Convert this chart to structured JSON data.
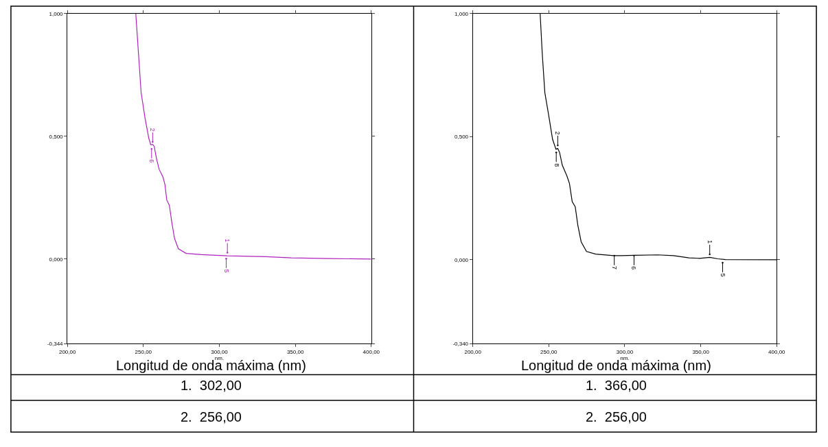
{
  "chart_data": [
    {
      "type": "line",
      "xlabel": "nm.",
      "xlim": [
        200,
        400
      ],
      "ylim": [
        -0.344,
        1.0
      ],
      "xticks": [
        {
          "value": 200,
          "label": "200,00"
        },
        {
          "value": 250,
          "label": "250,00"
        },
        {
          "value": 300,
          "label": "300,00"
        },
        {
          "value": 350,
          "label": "350,00"
        },
        {
          "value": 400,
          "label": "400,00"
        }
      ],
      "yticks": [
        {
          "value": -0.344,
          "label": "-0,344"
        },
        {
          "value": 0,
          "label": "0,000"
        },
        {
          "value": 0.5,
          "label": "0,500"
        },
        {
          "value": 1.0,
          "label": "1,000"
        }
      ],
      "series": [
        {
          "color": "#b020c0",
          "x": [
            245.0,
            246.8,
            248.5,
            251.1,
            253.6,
            254.9,
            256.1,
            257.1,
            258.7,
            260.4,
            262.9,
            264.2,
            265.4,
            267.1,
            268.8,
            270.5,
            273.0,
            278.1,
            288.3,
            305.2,
            330.5,
            347.4,
            372.8,
            400.0
          ],
          "values": [
            1.0,
            0.835,
            0.679,
            0.574,
            0.491,
            0.465,
            0.467,
            0.459,
            0.407,
            0.365,
            0.334,
            0.303,
            0.24,
            0.219,
            0.146,
            0.084,
            0.042,
            0.023,
            0.018,
            0.013,
            0.01,
            0.005,
            0.002,
            0.0
          ]
        }
      ],
      "annotations": [
        {
          "text": "1",
          "x": 305.3,
          "y": 0.026
        },
        {
          "text": "5",
          "x": 304.5,
          "y": 0.002
        },
        {
          "text": "2",
          "x": 256.1,
          "y": 0.477
        },
        {
          "text": "6",
          "x": 255.4,
          "y": 0.449
        },
        "Longitud de onda máxima (nm)",
        "1.  302,00",
        "2.  256,00"
      ]
    },
    {
      "type": "line",
      "xlabel": "nm.",
      "xlim": [
        200,
        400
      ],
      "ylim": [
        -0.34,
        1.0
      ],
      "xticks": [
        {
          "value": 200,
          "label": "200,00"
        },
        {
          "value": 250,
          "label": "250,00"
        },
        {
          "value": 300,
          "label": "300,00"
        },
        {
          "value": 350,
          "label": "350,00"
        },
        {
          "value": 400,
          "label": "400,00"
        }
      ],
      "yticks": [
        {
          "value": -0.34,
          "label": "-0,340"
        },
        {
          "value": 0,
          "label": "0,000"
        },
        {
          "value": 0.5,
          "label": "0,500"
        },
        {
          "value": 1.0,
          "label": "1,000"
        }
      ],
      "series": [
        {
          "color": "#000000",
          "x": [
            244.3,
            245.7,
            247.4,
            250.0,
            252.5,
            254.7,
            255.9,
            257.1,
            258.9,
            261.9,
            263.6,
            265.4,
            267.4,
            269.1,
            271.3,
            274.8,
            280.8,
            292.7,
            297.9,
            306.4,
            321.8,
            332.1,
            342.3,
            349.2,
            356.0,
            361.2,
            366.3,
            400.0
          ],
          "values": [
            1.0,
            0.837,
            0.679,
            0.584,
            0.489,
            0.449,
            0.452,
            0.436,
            0.384,
            0.341,
            0.31,
            0.236,
            0.215,
            0.141,
            0.073,
            0.034,
            0.023,
            0.017,
            0.017,
            0.018,
            0.02,
            0.017,
            0.008,
            0.006,
            0.01,
            0.004,
            0.001,
            0.0
          ]
        }
      ],
      "annotations": [
        {
          "text": "1",
          "x": 355.9,
          "y": 0.022
        },
        {
          "text": "5",
          "x": 364.4,
          "y": -0.012
        },
        {
          "text": "6",
          "x": 306.1,
          "y": 0.017
        },
        {
          "text": "7",
          "x": 293.1,
          "y": 0.017
        },
        {
          "text": "2",
          "x": 255.9,
          "y": 0.465
        },
        {
          "text": "8",
          "x": 254.9,
          "y": 0.436
        },
        "Longitud de onda máxima (nm)",
        "1.  366,00",
        "2.  256,00"
      ]
    }
  ]
}
